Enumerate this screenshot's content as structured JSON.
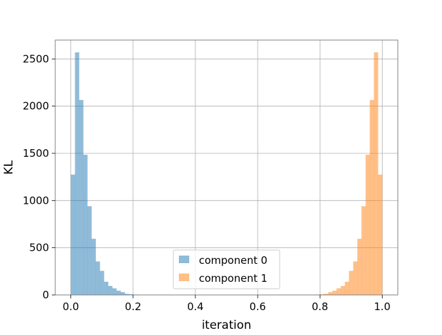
{
  "chart_data": {
    "type": "histogram",
    "title": "",
    "xlabel": "iteration",
    "ylabel": "KL",
    "xlim": [
      -0.05,
      1.05
    ],
    "ylim": [
      0,
      2700
    ],
    "xticks": [
      0.0,
      0.2,
      0.4,
      0.6,
      0.8,
      1.0
    ],
    "xtick_labels": [
      "0.0",
      "0.2",
      "0.4",
      "0.6",
      "0.8",
      "1.0"
    ],
    "yticks": [
      0,
      500,
      1000,
      1500,
      2000,
      2500
    ],
    "ytick_labels": [
      "0",
      "500",
      "1000",
      "1500",
      "2000",
      "2500"
    ],
    "grid": true,
    "legend_position": "lower center",
    "bin_width": 0.0133,
    "series": [
      {
        "name": "component 0",
        "color": "#1f77b4",
        "alpha": 0.5,
        "bin_starts": [
          0.0,
          0.0133,
          0.0267,
          0.04,
          0.0533,
          0.0667,
          0.08,
          0.0933,
          0.1067,
          0.12,
          0.1333,
          0.1467,
          0.16,
          0.1733,
          0.1867,
          0.2,
          0.2133
        ],
        "counts": [
          1275,
          2570,
          2065,
          1485,
          940,
          595,
          355,
          255,
          140,
          95,
          70,
          45,
          30,
          12,
          8,
          5,
          2
        ]
      },
      {
        "name": "component 1",
        "color": "#ff7f0e",
        "alpha": 0.5,
        "bin_starts": [
          0.7733,
          0.7867,
          0.8,
          0.8133,
          0.8267,
          0.84,
          0.8533,
          0.8667,
          0.88,
          0.8933,
          0.9067,
          0.92,
          0.9333,
          0.9467,
          0.96,
          0.9733,
          0.9867
        ],
        "counts": [
          2,
          5,
          8,
          12,
          30,
          45,
          70,
          95,
          140,
          255,
          355,
          595,
          940,
          1485,
          2065,
          2570,
          1275
        ]
      }
    ]
  }
}
